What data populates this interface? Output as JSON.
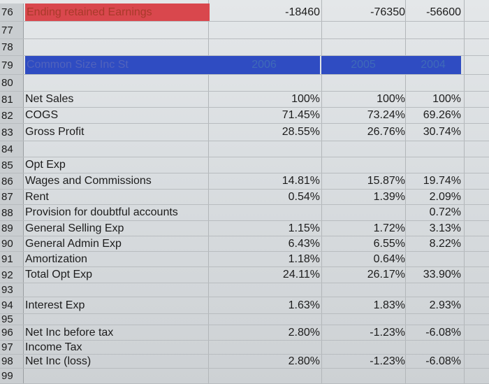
{
  "sheet": {
    "rows": [
      {
        "num": "76",
        "label": "Ending retained Earnings",
        "v2006": "-18460",
        "v2005": "-76350",
        "v2004": "-56600"
      },
      {
        "num": "77",
        "label": "",
        "v2006": "",
        "v2005": "",
        "v2004": ""
      },
      {
        "num": "78",
        "label": "",
        "v2006": "",
        "v2005": "",
        "v2004": ""
      },
      {
        "num": "79",
        "label": "Common Size Inc St",
        "v2006": "2006",
        "v2005": "2005",
        "v2004": "2004"
      },
      {
        "num": "80",
        "label": "",
        "v2006": "",
        "v2005": "",
        "v2004": ""
      },
      {
        "num": "81",
        "label": "Net Sales",
        "v2006": "100%",
        "v2005": "100%",
        "v2004": "100%"
      },
      {
        "num": "82",
        "label": "COGS",
        "v2006": "71.45%",
        "v2005": "73.24%",
        "v2004": "69.26%"
      },
      {
        "num": "83",
        "label": "Gross Profit",
        "v2006": "28.55%",
        "v2005": "26.76%",
        "v2004": "30.74%"
      },
      {
        "num": "84",
        "label": "",
        "v2006": "",
        "v2005": "",
        "v2004": ""
      },
      {
        "num": "85",
        "label": "Opt Exp",
        "v2006": "",
        "v2005": "",
        "v2004": ""
      },
      {
        "num": "86",
        "label": "Wages and Commissions",
        "v2006": "14.81%",
        "v2005": "15.87%",
        "v2004": "19.74%"
      },
      {
        "num": "87",
        "label": "Rent",
        "v2006": "0.54%",
        "v2005": "1.39%",
        "v2004": "2.09%"
      },
      {
        "num": "88",
        "label": "Provision for doubtful accounts",
        "v2006": "",
        "v2005": "",
        "v2004": "0.72%"
      },
      {
        "num": "89",
        "label": "General Selling Exp",
        "v2006": "1.15%",
        "v2005": "1.72%",
        "v2004": "3.13%"
      },
      {
        "num": "90",
        "label": "General Admin Exp",
        "v2006": "6.43%",
        "v2005": "6.55%",
        "v2004": "8.22%"
      },
      {
        "num": "91",
        "label": "Amortization",
        "v2006": "1.18%",
        "v2005": "0.64%",
        "v2004": ""
      },
      {
        "num": "92",
        "label": "Total Opt Exp",
        "v2006": "24.11%",
        "v2005": "26.17%",
        "v2004": "33.90%"
      },
      {
        "num": "93",
        "label": "",
        "v2006": "",
        "v2005": "",
        "v2004": ""
      },
      {
        "num": "94",
        "label": "Interest Exp",
        "v2006": "1.63%",
        "v2005": "1.83%",
        "v2004": "2.93%"
      },
      {
        "num": "95",
        "label": "",
        "v2006": "",
        "v2005": "",
        "v2004": ""
      },
      {
        "num": "96",
        "label": "Net Inc before tax",
        "v2006": "2.80%",
        "v2005": "-1.23%",
        "v2004": "-6.08%"
      },
      {
        "num": "97",
        "label": "Income Tax",
        "v2006": "",
        "v2005": "",
        "v2004": ""
      },
      {
        "num": "98",
        "label": "Net Inc (loss)",
        "v2006": "2.80%",
        "v2005": "-1.23%",
        "v2004": "-6.08%"
      },
      {
        "num": "99",
        "label": "",
        "v2006": "",
        "v2005": "",
        "v2004": ""
      }
    ]
  },
  "colors": {
    "red_highlight": "#d9474d",
    "blue_highlight": "#2f4cc2"
  }
}
